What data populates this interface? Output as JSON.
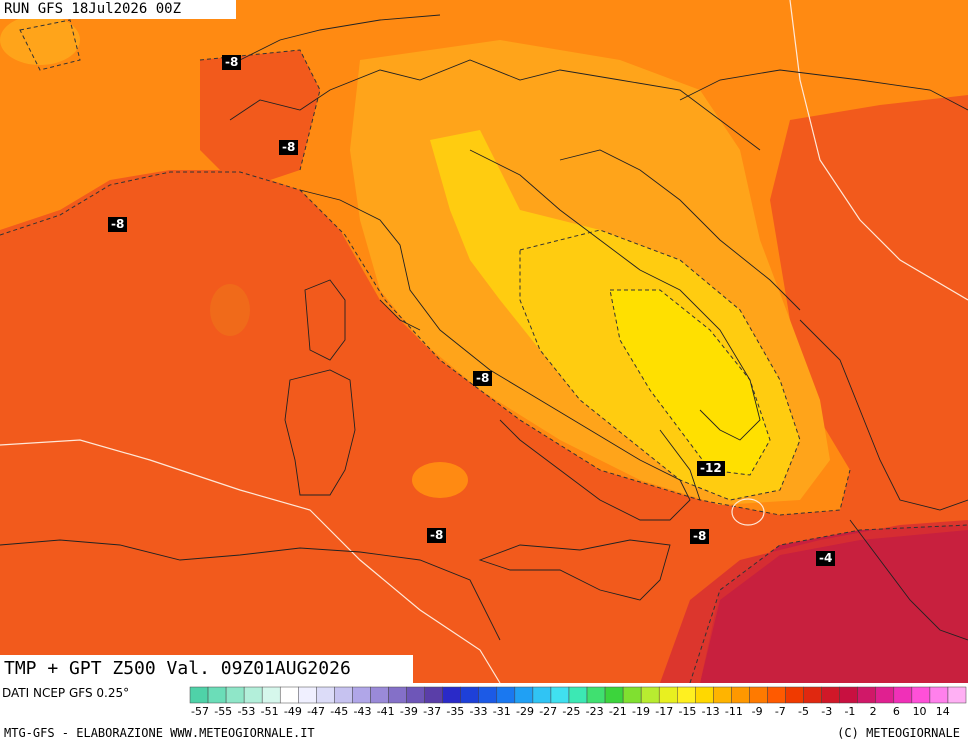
{
  "header": {
    "run": "RUN GFS 18Jul2026 00Z",
    "title": "TMP + GPT Z500 Val. 09Z01AUG2026"
  },
  "source": "DATI NCEP GFS 0.25°",
  "credits": {
    "left": "MTG-GFS - ELABORAZIONE WWW.METEOGIORNALE.IT",
    "right": "(C) METEOGIORNALE"
  },
  "contour_labels": [
    "-8",
    "-8",
    "-8",
    "-8",
    "-12",
    "-8",
    "-8",
    "-4"
  ],
  "legend": {
    "labels": [
      "-57",
      "-55",
      "-53",
      "-51",
      "-49",
      "-47",
      "-45",
      "-43",
      "-41",
      "-39",
      "-37",
      "-35",
      "-33",
      "-31",
      "-29",
      "-27",
      "-25",
      "-23",
      "-21",
      "-19",
      "-17",
      "-15",
      "-13",
      "-11",
      "-9",
      "-7",
      "-5",
      "-3",
      "-1",
      "2",
      "6",
      "10",
      "14"
    ],
    "colors": [
      "#4fd2a8",
      "#6bddb8",
      "#8fe6c8",
      "#b3efda",
      "#d6f7ec",
      "#ffffff",
      "#f0f0ff",
      "#dcdcf8",
      "#c6c2f0",
      "#b0a6e8",
      "#9a8ad8",
      "#8470c8",
      "#6e56b8",
      "#5a3ea8",
      "#2a2ac8",
      "#1e40d8",
      "#1c5ae6",
      "#1a78f0",
      "#20a0f4",
      "#30c4f4",
      "#40e0f0",
      "#3ce8b4",
      "#40e070",
      "#3cd43c",
      "#80e030",
      "#b8ec30",
      "#e8f020",
      "#fff020",
      "#ffd800",
      "#ffb400",
      "#ff9800",
      "#ff7a00",
      "#ff5a00",
      "#f03a00",
      "#e02810",
      "#d01828",
      "#c81040",
      "#d01868",
      "#e02090",
      "#f030b8",
      "#ff50d8",
      "#ff80ec",
      "#ffb0f4"
    ]
  },
  "colors": {
    "deep_orange": "#f25a1c",
    "orange": "#ff8a12",
    "light_orange": "#ffa41a",
    "yellow": "#ffcc10",
    "bright_yellow": "#ffe000",
    "crimson": "#c8203e"
  }
}
